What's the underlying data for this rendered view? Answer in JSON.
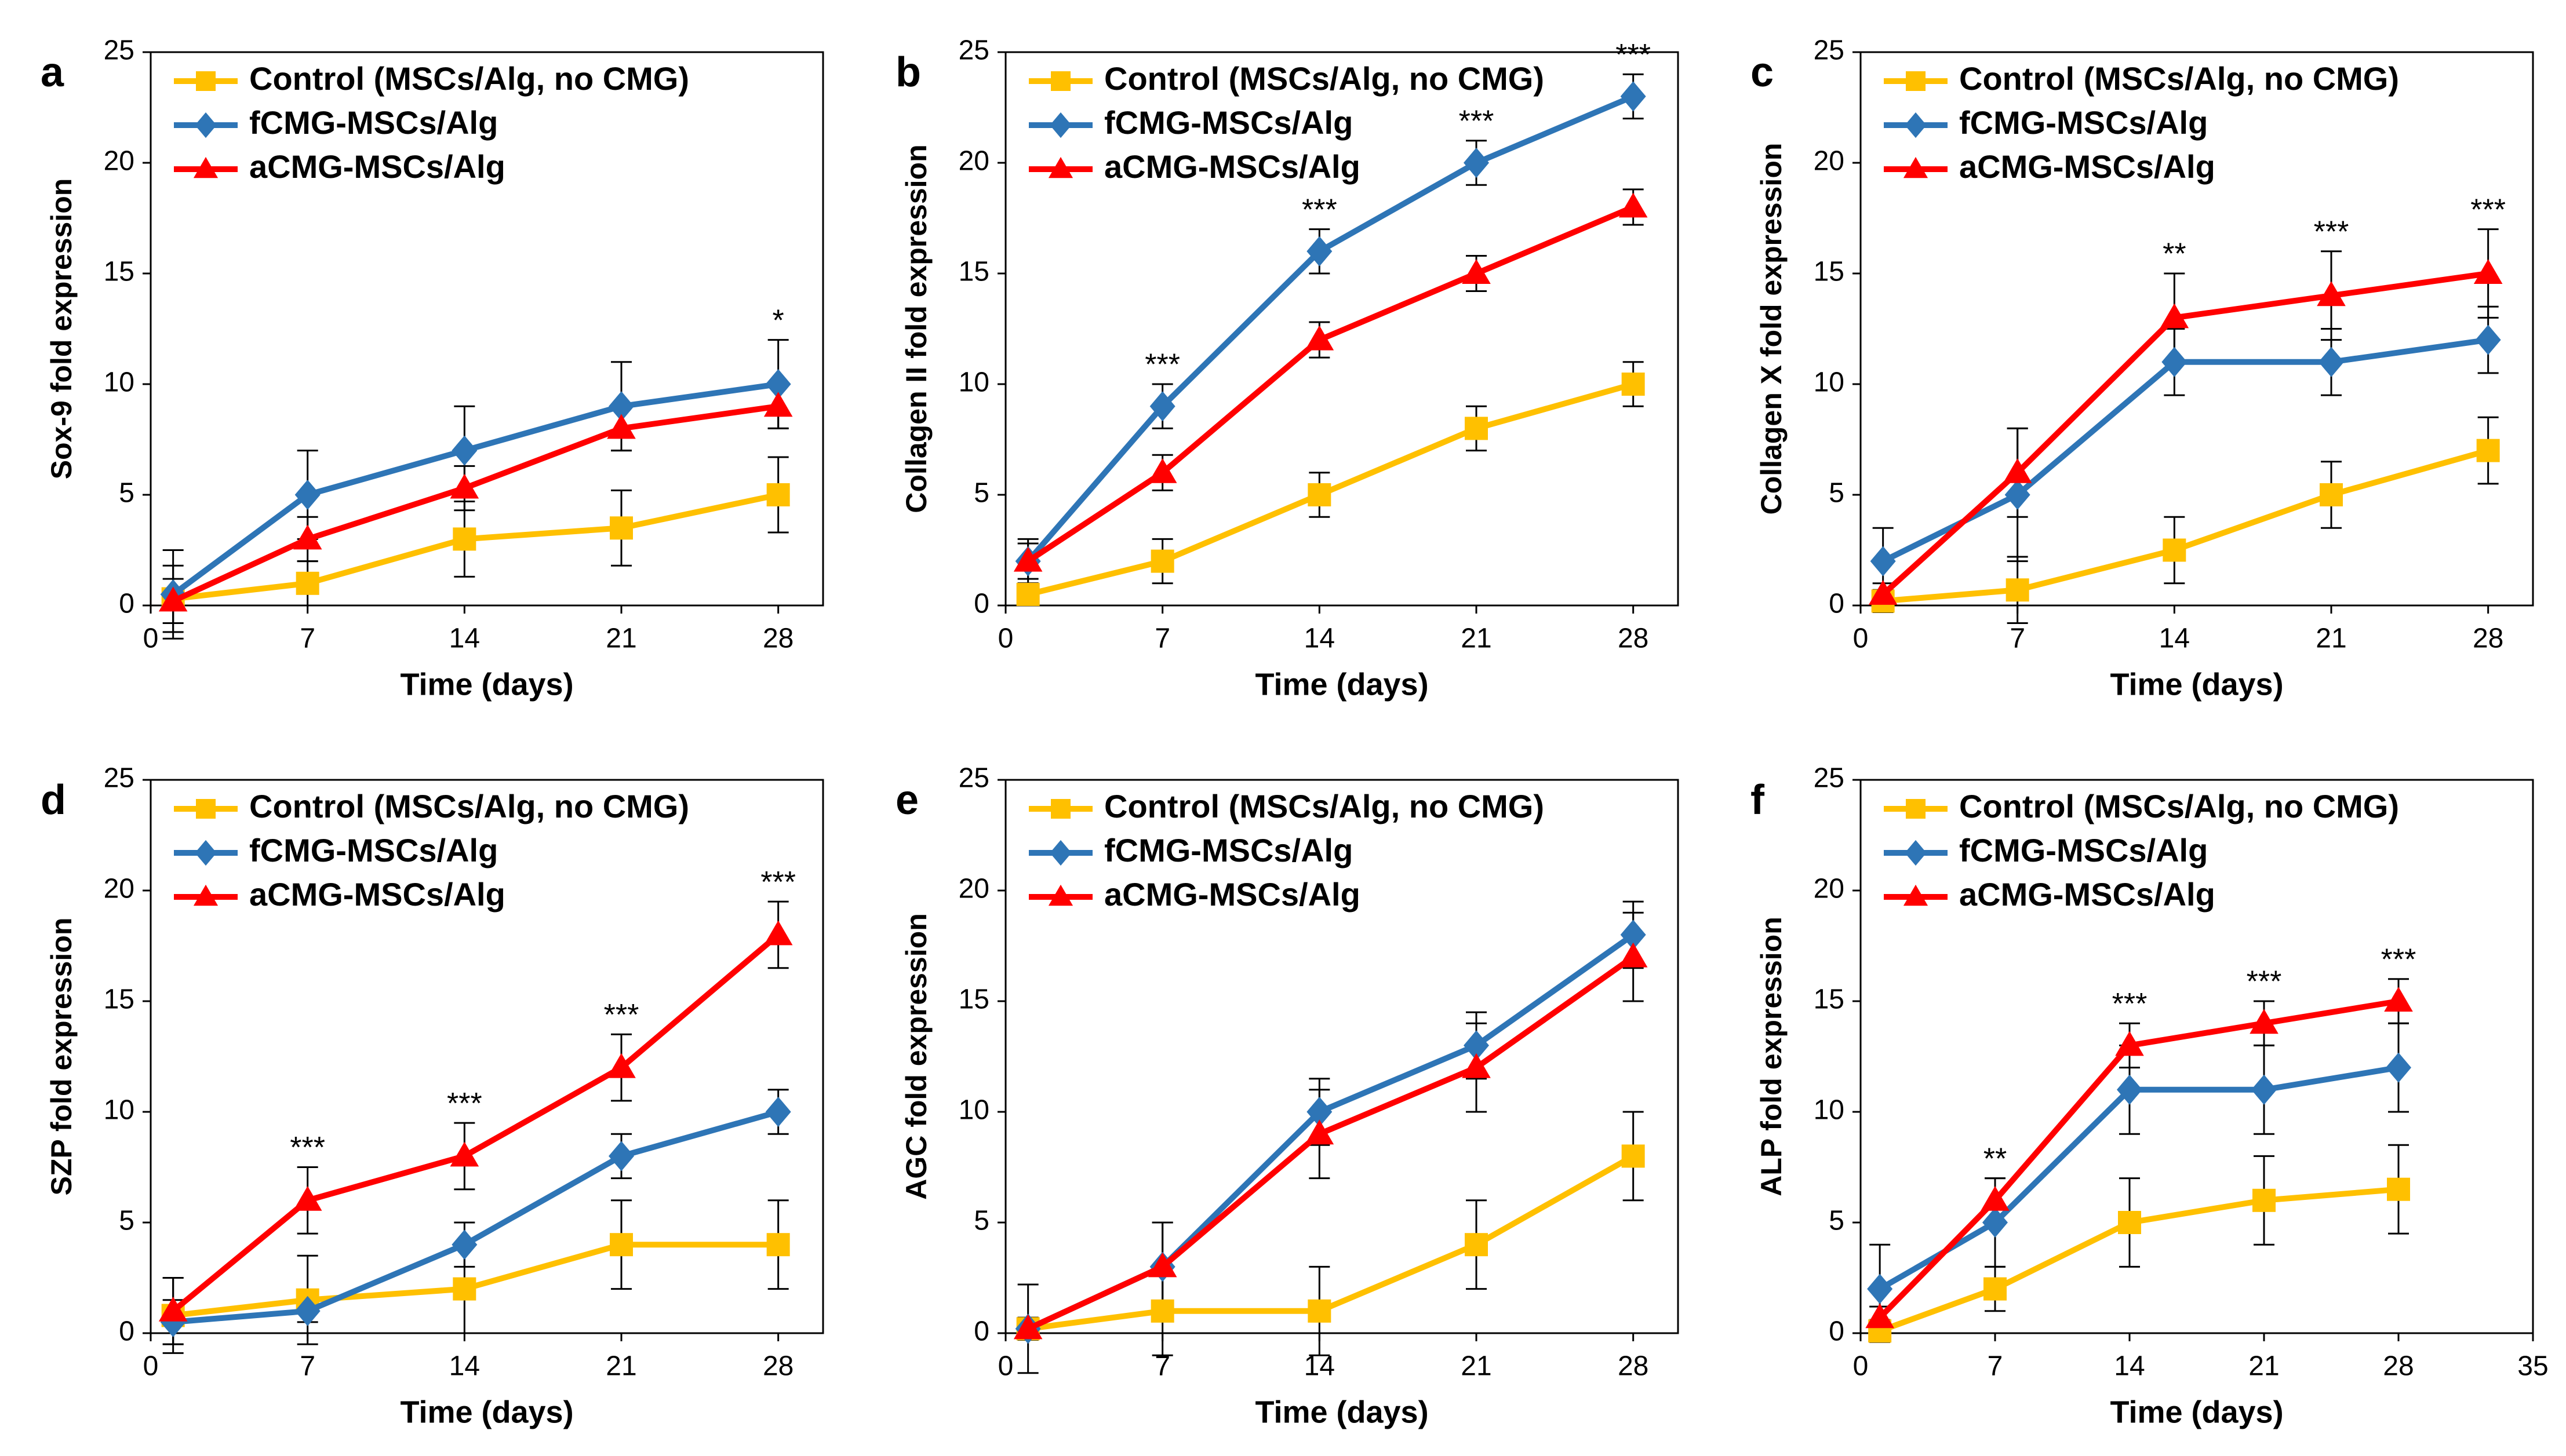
{
  "chart_data": [
    {
      "type": "line",
      "panel_label": "a",
      "y_label": "Sox-9 fold expression",
      "x_label": "Time (days)",
      "x": [
        1,
        7,
        14,
        21,
        28
      ],
      "xlim": [
        0,
        30
      ],
      "xticks": [
        0,
        7,
        14,
        21,
        28
      ],
      "ylim": [
        0,
        25
      ],
      "yticks": [
        0,
        5,
        10,
        15,
        20,
        25
      ],
      "series": [
        {
          "name": "Control (MSCs/Alg, no CMG)",
          "color": "#FFC000",
          "marker": "square",
          "values": [
            0.3,
            1,
            3,
            3.5,
            5
          ],
          "errors": [
            1.5,
            1,
            1.7,
            1.7,
            1.7
          ]
        },
        {
          "name": "fCMG-MSCs/Alg",
          "color": "#2E75B6",
          "marker": "diamond",
          "values": [
            0.5,
            5,
            7,
            9,
            10
          ],
          "errors": [
            2,
            2,
            2,
            2,
            2
          ]
        },
        {
          "name": "aCMG-MSCs/Alg",
          "color": "#FF0000",
          "marker": "triangle",
          "values": [
            0.2,
            3,
            5.3,
            8,
            9
          ],
          "errors": [
            1,
            1,
            1,
            1,
            1
          ]
        }
      ],
      "annotations": [
        {
          "x": 28,
          "label": "*"
        }
      ]
    },
    {
      "type": "line",
      "panel_label": "b",
      "y_label": "Collagen II fold expression",
      "x_label": "Time (days)",
      "x": [
        1,
        7,
        14,
        21,
        28
      ],
      "xlim": [
        0,
        30
      ],
      "xticks": [
        0,
        7,
        14,
        21,
        28
      ],
      "ylim": [
        0,
        25
      ],
      "yticks": [
        0,
        5,
        10,
        15,
        20,
        25
      ],
      "series": [
        {
          "name": "Control (MSCs/Alg, no CMG)",
          "color": "#FFC000",
          "marker": "square",
          "values": [
            0.5,
            2,
            5,
            8,
            10
          ],
          "errors": [
            0.5,
            1,
            1,
            1,
            1
          ]
        },
        {
          "name": "fCMG-MSCs/Alg",
          "color": "#2E75B6",
          "marker": "diamond",
          "values": [
            2,
            9,
            16,
            20,
            23
          ],
          "errors": [
            1,
            1,
            1,
            1,
            1
          ]
        },
        {
          "name": "aCMG-MSCs/Alg",
          "color": "#FF0000",
          "marker": "triangle",
          "values": [
            2,
            6,
            12,
            15,
            18
          ],
          "errors": [
            0.8,
            0.8,
            0.8,
            0.8,
            0.8
          ]
        }
      ],
      "annotations": [
        {
          "x": 7,
          "label": "***"
        },
        {
          "x": 14,
          "label": "***"
        },
        {
          "x": 21,
          "label": "***"
        },
        {
          "x": 28,
          "label": "***"
        }
      ]
    },
    {
      "type": "line",
      "panel_label": "c",
      "y_label": "Collagen X fold expression",
      "x_label": "Time (days)",
      "x": [
        1,
        7,
        14,
        21,
        28
      ],
      "xlim": [
        0,
        30
      ],
      "xticks": [
        0,
        7,
        14,
        21,
        28
      ],
      "ylim": [
        0,
        25
      ],
      "yticks": [
        0,
        5,
        10,
        15,
        20,
        25
      ],
      "series": [
        {
          "name": "Control (MSCs/Alg, no CMG)",
          "color": "#FFC000",
          "marker": "square",
          "values": [
            0.2,
            0.7,
            2.5,
            5,
            7
          ],
          "errors": [
            0.5,
            1.5,
            1.5,
            1.5,
            1.5
          ]
        },
        {
          "name": "fCMG-MSCs/Alg",
          "color": "#2E75B6",
          "marker": "diamond",
          "values": [
            2,
            5,
            11,
            11,
            12
          ],
          "errors": [
            1.5,
            3,
            1.5,
            1.5,
            1.5
          ]
        },
        {
          "name": "aCMG-MSCs/Alg",
          "color": "#FF0000",
          "marker": "triangle",
          "values": [
            0.5,
            6,
            13,
            14,
            15
          ],
          "errors": [
            0.5,
            2,
            2,
            2,
            2
          ]
        }
      ],
      "annotations": [
        {
          "x": 14,
          "label": "**"
        },
        {
          "x": 21,
          "label": "***"
        },
        {
          "x": 28,
          "label": "***"
        }
      ]
    },
    {
      "type": "line",
      "panel_label": "d",
      "y_label": "SZP fold expression",
      "x_label": "Time (days)",
      "x": [
        1,
        7,
        14,
        21,
        28
      ],
      "xlim": [
        0,
        30
      ],
      "xticks": [
        0,
        7,
        14,
        21,
        28
      ],
      "ylim": [
        0,
        25
      ],
      "yticks": [
        0,
        5,
        10,
        15,
        20,
        25
      ],
      "series": [
        {
          "name": "Control (MSCs/Alg, no CMG)",
          "color": "#FFC000",
          "marker": "square",
          "values": [
            0.8,
            1.5,
            2,
            4,
            4
          ],
          "errors": [
            1.7,
            2,
            2,
            2,
            2
          ]
        },
        {
          "name": "fCMG-MSCs/Alg",
          "color": "#2E75B6",
          "marker": "diamond",
          "values": [
            0.5,
            1,
            4,
            8,
            10
          ],
          "errors": [
            1,
            0.5,
            1,
            1,
            1
          ]
        },
        {
          "name": "aCMG-MSCs/Alg",
          "color": "#FF0000",
          "marker": "triangle",
          "values": [
            1,
            6,
            8,
            12,
            18
          ],
          "errors": [
            1.5,
            1.5,
            1.5,
            1.5,
            1.5
          ]
        }
      ],
      "annotations": [
        {
          "x": 7,
          "label": "***"
        },
        {
          "x": 14,
          "label": "***"
        },
        {
          "x": 21,
          "label": "***"
        },
        {
          "x": 28,
          "label": "***"
        }
      ]
    },
    {
      "type": "line",
      "panel_label": "e",
      "y_label": "AGC fold expression",
      "x_label": "Time (days)",
      "x": [
        1,
        7,
        14,
        21,
        28
      ],
      "xlim": [
        0,
        30
      ],
      "xticks": [
        0,
        7,
        14,
        21,
        28
      ],
      "ylim": [
        0,
        25
      ],
      "yticks": [
        0,
        5,
        10,
        15,
        20,
        25
      ],
      "series": [
        {
          "name": "Control (MSCs/Alg, no CMG)",
          "color": "#FFC000",
          "marker": "square",
          "values": [
            0.2,
            1,
            1,
            4,
            8
          ],
          "errors": [
            2,
            2,
            2,
            2,
            2
          ]
        },
        {
          "name": "fCMG-MSCs/Alg",
          "color": "#2E75B6",
          "marker": "diamond",
          "values": [
            0.2,
            3,
            10,
            13,
            18
          ],
          "errors": [
            0.5,
            2,
            1.5,
            1.5,
            1.5
          ]
        },
        {
          "name": "aCMG-MSCs/Alg",
          "color": "#FF0000",
          "marker": "triangle",
          "values": [
            0.2,
            3,
            9,
            12,
            17
          ],
          "errors": [
            0.5,
            2,
            2,
            2,
            2
          ]
        }
      ],
      "annotations": []
    },
    {
      "type": "line",
      "panel_label": "f",
      "y_label": "ALP fold expression",
      "x_label": "Time (days)",
      "x": [
        1,
        7,
        14,
        21,
        28
      ],
      "xlim": [
        0,
        35
      ],
      "xticks": [
        0,
        7,
        14,
        21,
        28,
        35
      ],
      "ylim": [
        0,
        25
      ],
      "yticks": [
        0,
        5,
        10,
        15,
        20,
        25
      ],
      "series": [
        {
          "name": "Control (MSCs/Alg, no CMG)",
          "color": "#FFC000",
          "marker": "square",
          "values": [
            0.1,
            2,
            5,
            6,
            6.5
          ],
          "errors": [
            0.5,
            1,
            2,
            2,
            2
          ]
        },
        {
          "name": "fCMG-MSCs/Alg",
          "color": "#2E75B6",
          "marker": "diamond",
          "values": [
            2,
            5,
            11,
            11,
            12
          ],
          "errors": [
            2,
            2,
            2,
            2,
            2
          ]
        },
        {
          "name": "aCMG-MSCs/Alg",
          "color": "#FF0000",
          "marker": "triangle",
          "values": [
            0.7,
            6,
            13,
            14,
            15
          ],
          "errors": [
            0.5,
            1,
            1,
            1,
            1
          ]
        }
      ],
      "annotations": [
        {
          "x": 7,
          "label": "**"
        },
        {
          "x": 14,
          "label": "***"
        },
        {
          "x": 21,
          "label": "***"
        },
        {
          "x": 28,
          "label": "***"
        }
      ]
    }
  ]
}
